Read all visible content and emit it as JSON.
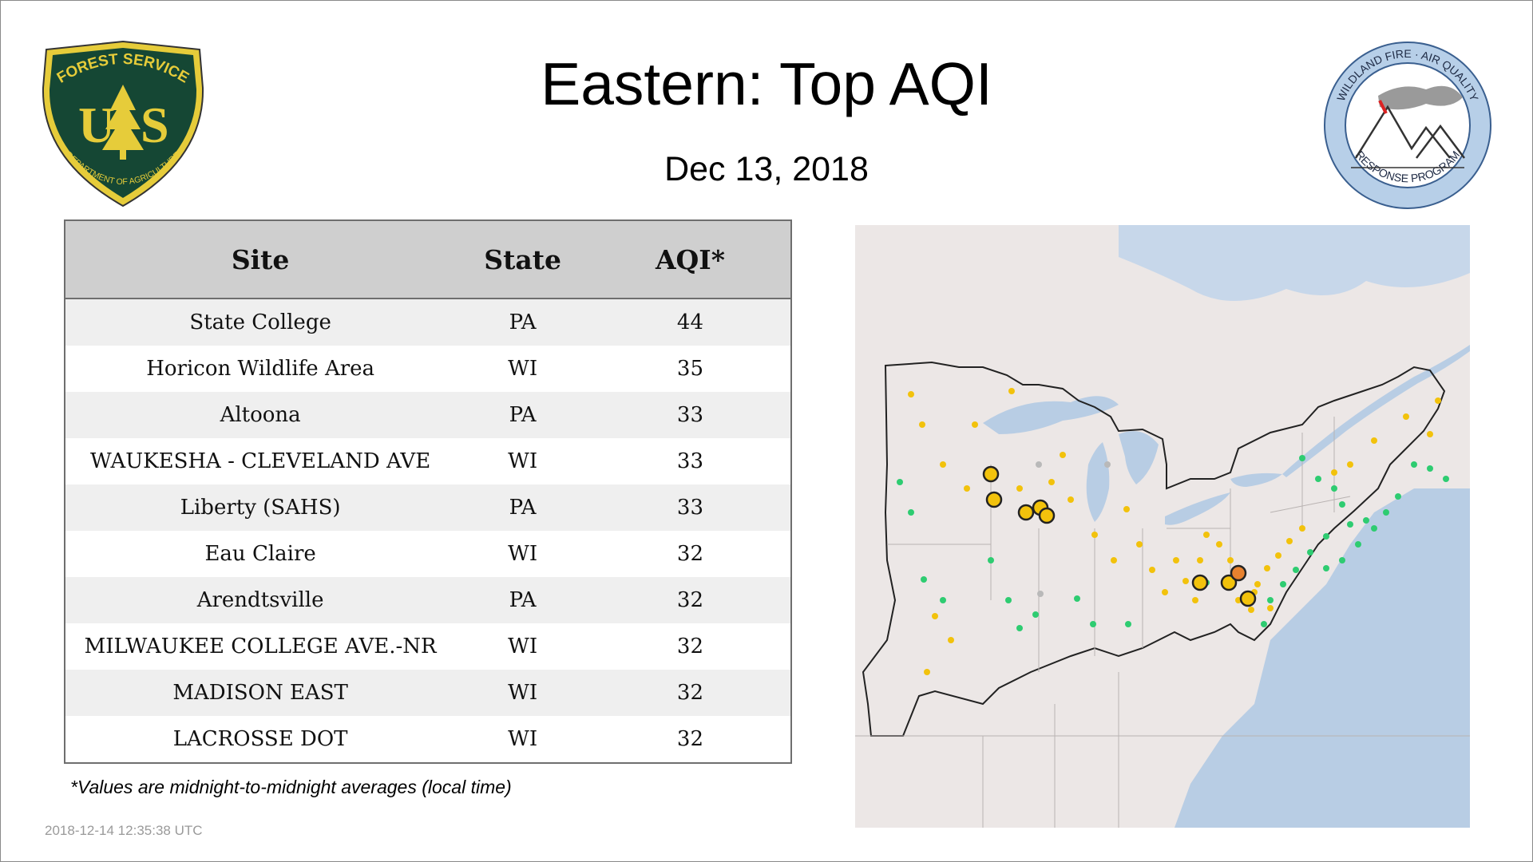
{
  "header": {
    "title": "Eastern: Top AQI",
    "date": "Dec 13, 2018"
  },
  "logos": {
    "forest_service": {
      "top_text": "FOREST SERVICE",
      "left_letter": "U",
      "right_letter": "S",
      "bottom_text": "DEPARTMENT OF AGRICULTURE"
    },
    "wildland": {
      "top_text": "WILDLAND FIRE · AIR QUALITY",
      "bottom_text": "RESPONSE PROGRAM"
    }
  },
  "table": {
    "headers": [
      "Site",
      "State",
      "AQI*"
    ],
    "rows": [
      {
        "site": "State College",
        "state": "PA",
        "aqi": "44"
      },
      {
        "site": "Horicon Wildlife Area",
        "state": "WI",
        "aqi": "35"
      },
      {
        "site": "Altoona",
        "state": "PA",
        "aqi": "33"
      },
      {
        "site": "WAUKESHA - CLEVELAND AVE",
        "state": "WI",
        "aqi": "33"
      },
      {
        "site": "Liberty (SAHS)",
        "state": "PA",
        "aqi": "33"
      },
      {
        "site": "Eau Claire",
        "state": "WI",
        "aqi": "32"
      },
      {
        "site": "Arendtsville",
        "state": "PA",
        "aqi": "32"
      },
      {
        "site": "MILWAUKEE COLLEGE AVE.-NR",
        "state": "WI",
        "aqi": "32"
      },
      {
        "site": "MADISON EAST",
        "state": "WI",
        "aqi": "32"
      },
      {
        "site": "LACROSSE DOT",
        "state": "WI",
        "aqi": "32"
      }
    ]
  },
  "footnote": "*Values are midnight-to-midnight averages (local time)",
  "timestamp": "2018-12-14 12:35:38 UTC",
  "map": {
    "colors": {
      "good": "#2ecc71",
      "moderate": "#f2c20c",
      "usg": "#e8822f",
      "no_data": "#b9b9b9",
      "land": "#ece7e6",
      "water": "#b8cde4"
    }
  }
}
